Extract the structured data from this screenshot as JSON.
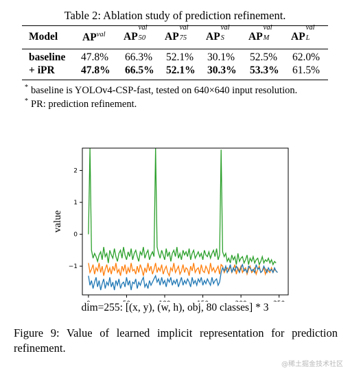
{
  "table": {
    "caption": "Table 2: Ablation study of prediction refinement.",
    "header": {
      "model": "Model",
      "cols": [
        {
          "main": "AP",
          "sup": "val",
          "sub": ""
        },
        {
          "main": "AP",
          "sup": "val",
          "sub": "50"
        },
        {
          "main": "AP",
          "sup": "val",
          "sub": "75"
        },
        {
          "main": "AP",
          "sup": "val",
          "sub": "S"
        },
        {
          "main": "AP",
          "sup": "val",
          "sub": "M"
        },
        {
          "main": "AP",
          "sup": "val",
          "sub": "L"
        }
      ]
    },
    "rows": [
      {
        "model": "baseline",
        "values": [
          "47.8%",
          "66.3%",
          "52.1%",
          "30.1%",
          "52.5%",
          "62.0%"
        ],
        "bold": [
          false,
          false,
          false,
          false,
          false,
          false
        ]
      },
      {
        "model": "+ iPR",
        "values": [
          "47.8%",
          "66.5%",
          "52.1%",
          "30.3%",
          "53.3%",
          "61.5%"
        ],
        "bold": [
          true,
          true,
          true,
          true,
          true,
          false
        ]
      }
    ],
    "notes": [
      "baseline is YOLOv4-CSP-fast, tested on 640×640 input resolution.",
      "PR: prediction refinement."
    ]
  },
  "figure": {
    "xdim_label": "dim=255: [(x, y), (w, h), obj, 80 classes] * 3",
    "caption": "Figure 9: Value of learned implicit representation for prediction refinement."
  },
  "chart_data": {
    "type": "line",
    "title": "",
    "xlabel": "",
    "ylabel": "value",
    "xlim": [
      -8,
      262
    ],
    "ylim": [
      -1.9,
      2.7
    ],
    "xticks": [
      0,
      50,
      100,
      150,
      200,
      250
    ],
    "yticks": [
      -1,
      0,
      1,
      2
    ],
    "grid": false,
    "series": [
      {
        "color": "#2ca02c",
        "values": [
          0,
          2.7,
          -0.5,
          -0.75,
          -0.6,
          -0.7,
          -0.85,
          -0.65,
          -0.55,
          -0.8,
          -0.4,
          -0.7,
          -0.6,
          -0.9,
          -0.5,
          -0.65,
          -0.75,
          -0.45,
          -0.7,
          -0.85,
          -0.6,
          -0.5,
          -0.75,
          -0.4,
          -0.65,
          -0.8,
          -0.55,
          -0.7,
          -0.45,
          -0.8,
          -0.6,
          -0.5,
          -0.7,
          -0.85,
          -0.55,
          -0.65,
          -0.4,
          -0.75,
          -0.6,
          -0.5,
          -0.8,
          -0.65,
          -0.55,
          -0.7,
          2.7,
          -0.4,
          -0.6,
          -0.75,
          -0.5,
          -0.65,
          -0.8,
          -0.45,
          -0.7,
          -0.55,
          -0.85,
          -0.6,
          -0.5,
          -0.7,
          -0.4,
          -0.75,
          -0.6,
          -0.8,
          -0.5,
          -0.65,
          -0.55,
          -0.7,
          -0.45,
          -0.8,
          -0.6,
          -0.5,
          -0.75,
          -0.65,
          -0.55,
          -0.7,
          -0.6,
          -0.8,
          -0.5,
          -0.65,
          -0.7,
          -0.55,
          -0.75,
          -0.6,
          -0.5,
          -0.7,
          -0.45,
          -0.8,
          -0.65,
          2.65,
          -0.55,
          -0.7,
          -0.6,
          -0.85,
          -0.75,
          -0.9,
          -0.65,
          -0.8,
          -0.7,
          -0.95,
          -0.6,
          -0.85,
          -0.75,
          -0.7,
          -0.9,
          -0.8,
          -0.65,
          -0.95,
          -0.75,
          -0.85,
          -0.7,
          -0.9,
          -0.8,
          -0.75,
          -0.95,
          -0.85,
          -0.7,
          -0.9,
          -0.8,
          -0.85,
          -0.75,
          -0.9,
          -0.8,
          -0.95,
          -0.85,
          -0.9
        ]
      },
      {
        "color": "#ff7f0e",
        "values": [
          -0.9,
          -1.2,
          -1.1,
          -0.95,
          -1.25,
          -1.05,
          -1.15,
          -0.9,
          -1.2,
          -1.0,
          -1.3,
          -1.1,
          -0.95,
          -1.2,
          -1.05,
          -1.25,
          -1.0,
          -1.15,
          -0.9,
          -1.2,
          -1.1,
          -1.3,
          -1.0,
          -1.15,
          -0.95,
          -1.25,
          -1.05,
          -1.2,
          -0.9,
          -1.15,
          -1.1,
          -1.25,
          -1.0,
          -1.2,
          -0.95,
          -1.1,
          -1.3,
          -1.05,
          -1.2,
          -0.9,
          -1.15,
          -1.0,
          -1.25,
          -1.1,
          -0.9,
          -1.2,
          -1.05,
          -1.15,
          -0.95,
          -1.25,
          -1.1,
          -1.0,
          -1.2,
          -1.3,
          -1.05,
          -1.15,
          -0.9,
          -1.2,
          -1.1,
          -1.0,
          -1.25,
          -1.15,
          -0.95,
          -1.2,
          -1.05,
          -1.1,
          -1.3,
          -1.0,
          -1.15,
          -0.9,
          -1.2,
          -1.1,
          -1.05,
          -1.25,
          -0.95,
          -1.15,
          -1.2,
          -1.0,
          -1.1,
          -1.25,
          -0.9,
          -1.15,
          -1.05,
          -1.2,
          -1.1,
          -1.0,
          -1.25,
          -0.95,
          -1.0,
          -1.2,
          -1.1,
          -1.05,
          -1.15,
          -1.0,
          -1.2,
          -1.1,
          -0.95,
          -1.25,
          -1.05,
          -1.15,
          -1.0,
          -1.2,
          -1.1,
          -1.05,
          -1.25,
          -1.1,
          -1.0,
          -1.2,
          -1.15,
          -1.05,
          -1.25,
          -1.1,
          -1.0,
          -1.2,
          -1.15,
          -1.05,
          -1.25,
          -1.1,
          -1.15,
          -1.2,
          -1.05,
          -1.2,
          -1.1,
          -1.15,
          -1.2
        ]
      },
      {
        "color": "#1f77b4",
        "values": [
          -1.3,
          -1.6,
          -1.45,
          -1.7,
          -1.5,
          -1.35,
          -1.65,
          -1.45,
          -1.75,
          -1.55,
          -1.4,
          -1.7,
          -1.5,
          -1.6,
          -1.35,
          -1.65,
          -1.5,
          -1.75,
          -1.45,
          -1.6,
          -1.4,
          -1.7,
          -1.55,
          -1.5,
          -1.65,
          -1.35,
          -1.6,
          -1.45,
          -1.75,
          -1.5,
          -1.55,
          -1.4,
          -1.7,
          -1.5,
          -1.6,
          -1.45,
          -1.35,
          -1.65,
          -1.55,
          -1.7,
          -1.45,
          -1.6,
          -1.5,
          -1.4,
          -1.3,
          -1.5,
          -1.4,
          -1.6,
          -1.35,
          -1.55,
          -1.45,
          -1.65,
          -1.4,
          -1.5,
          -1.35,
          -1.6,
          -1.45,
          -1.55,
          -1.4,
          -1.65,
          -1.5,
          -1.35,
          -1.6,
          -1.45,
          -1.55,
          -1.4,
          -1.5,
          -1.65,
          -1.35,
          -1.55,
          -1.45,
          -1.6,
          -1.4,
          -1.5,
          -1.35,
          -1.6,
          -1.45,
          -1.55,
          -1.4,
          -1.5,
          -1.6,
          -1.35,
          -1.55,
          -1.45,
          -1.4,
          -1.6,
          -1.5,
          -1.2,
          -1.05,
          -1.15,
          -1.0,
          -1.2,
          -1.1,
          -0.95,
          -1.2,
          -1.05,
          -1.15,
          -1.0,
          -1.1,
          -1.2,
          -1.05,
          -0.95,
          -1.15,
          -1.1,
          -1.2,
          -1.0,
          -1.05,
          -1.15,
          -1.1,
          -1.2,
          -0.95,
          -1.1,
          -1.05,
          -1.2,
          -1.15,
          -1.0,
          -1.1,
          -1.2,
          -1.05,
          -1.15,
          -1.1,
          -1.2,
          -1.05,
          -1.15,
          -1.2
        ]
      }
    ],
    "x_step": 2
  },
  "watermark": "@稀土掘金技术社区"
}
